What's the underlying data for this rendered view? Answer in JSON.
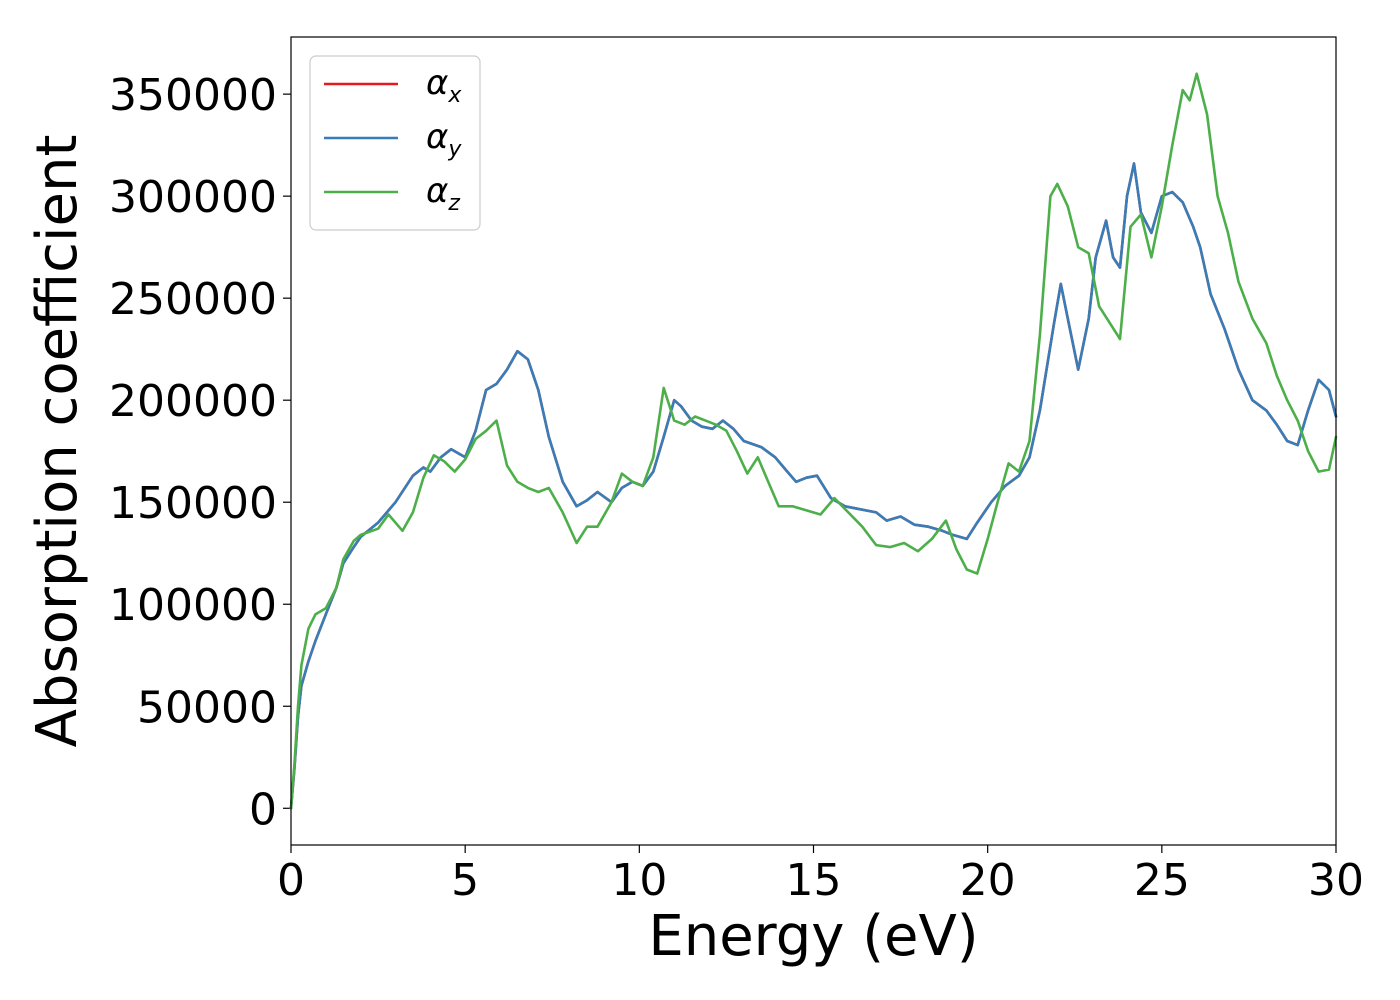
{
  "chart_data": {
    "type": "line",
    "xlabel": "Energy (eV)",
    "ylabel": "Absorption coefficient",
    "xlim": [
      0,
      30
    ],
    "ylim": [
      -18000,
      378000
    ],
    "xticks": [
      "0",
      "5",
      "10",
      "15",
      "20",
      "25",
      "30"
    ],
    "yticks": [
      "0",
      "50000",
      "100000",
      "150000",
      "200000",
      "250000",
      "300000",
      "350000"
    ],
    "grid": false,
    "legend_position": "top-left",
    "colors": {
      "alpha_x": "#e41a1c",
      "alpha_y": "#377eb8",
      "alpha_z": "#4daf4a"
    },
    "series": [
      {
        "name": "αx",
        "symbol": "α",
        "sub": "x",
        "x": [
          0,
          0.1,
          0.2,
          0.3,
          0.5,
          0.7,
          1.0,
          1.3,
          1.5,
          1.8,
          2.0,
          2.5,
          3.0,
          3.5,
          3.8,
          4.0,
          4.3,
          4.6,
          5.0,
          5.3,
          5.6,
          5.9,
          6.2,
          6.5,
          6.8,
          7.1,
          7.4,
          7.8,
          8.2,
          8.5,
          8.8,
          9.2,
          9.5,
          9.8,
          10.1,
          10.4,
          10.7,
          11.0,
          11.2,
          11.5,
          11.8,
          12.1,
          12.4,
          12.7,
          13.0,
          13.5,
          13.9,
          14.2,
          14.5,
          14.8,
          15.1,
          15.5,
          15.9,
          16.2,
          16.5,
          16.8,
          17.1,
          17.5,
          17.9,
          18.3,
          18.7,
          19.0,
          19.4,
          19.7,
          20.1,
          20.5,
          20.9,
          21.2,
          21.5,
          21.9,
          22.1,
          22.3,
          22.6,
          22.9,
          23.1,
          23.4,
          23.6,
          23.8,
          24.0,
          24.2,
          24.4,
          24.7,
          25.0,
          25.3,
          25.6,
          25.9,
          26.1,
          26.4,
          26.8,
          27.2,
          27.6,
          28.0,
          28.3,
          28.6,
          28.9,
          29.2,
          29.5,
          29.8,
          30.0
        ],
        "values": [
          0,
          20000,
          45000,
          60000,
          72000,
          82000,
          95000,
          108000,
          120000,
          128000,
          133000,
          140000,
          150000,
          163000,
          167000,
          165000,
          172000,
          176000,
          172000,
          185000,
          205000,
          208000,
          215000,
          224000,
          220000,
          205000,
          182000,
          160000,
          148000,
          151000,
          155000,
          150000,
          157000,
          160000,
          158000,
          165000,
          182000,
          200000,
          197000,
          190000,
          187000,
          186000,
          190000,
          186000,
          180000,
          177000,
          172000,
          166000,
          160000,
          162000,
          163000,
          152000,
          148000,
          147000,
          146000,
          145000,
          141000,
          143000,
          139000,
          138000,
          136000,
          134000,
          132000,
          140000,
          150000,
          158000,
          163000,
          172000,
          195000,
          237000,
          257000,
          240000,
          215000,
          240000,
          270000,
          288000,
          270000,
          265000,
          300000,
          316000,
          292000,
          282000,
          300000,
          302000,
          297000,
          285000,
          275000,
          252000,
          235000,
          215000,
          200000,
          195000,
          188000,
          180000,
          178000,
          195000,
          210000,
          205000,
          192000
        ],
        "note_hidden_under_alpha_y": true
      },
      {
        "name": "αy",
        "symbol": "α",
        "sub": "y",
        "x": [
          0,
          0.1,
          0.2,
          0.3,
          0.5,
          0.7,
          1.0,
          1.3,
          1.5,
          1.8,
          2.0,
          2.5,
          3.0,
          3.5,
          3.8,
          4.0,
          4.3,
          4.6,
          5.0,
          5.3,
          5.6,
          5.9,
          6.2,
          6.5,
          6.8,
          7.1,
          7.4,
          7.8,
          8.2,
          8.5,
          8.8,
          9.2,
          9.5,
          9.8,
          10.1,
          10.4,
          10.7,
          11.0,
          11.2,
          11.5,
          11.8,
          12.1,
          12.4,
          12.7,
          13.0,
          13.5,
          13.9,
          14.2,
          14.5,
          14.8,
          15.1,
          15.5,
          15.9,
          16.2,
          16.5,
          16.8,
          17.1,
          17.5,
          17.9,
          18.3,
          18.7,
          19.0,
          19.4,
          19.7,
          20.1,
          20.5,
          20.9,
          21.2,
          21.5,
          21.9,
          22.1,
          22.3,
          22.6,
          22.9,
          23.1,
          23.4,
          23.6,
          23.8,
          24.0,
          24.2,
          24.4,
          24.7,
          25.0,
          25.3,
          25.6,
          25.9,
          26.1,
          26.4,
          26.8,
          27.2,
          27.6,
          28.0,
          28.3,
          28.6,
          28.9,
          29.2,
          29.5,
          29.8,
          30.0
        ],
        "values": [
          0,
          20000,
          45000,
          60000,
          72000,
          82000,
          95000,
          108000,
          120000,
          128000,
          133000,
          140000,
          150000,
          163000,
          167000,
          165000,
          172000,
          176000,
          172000,
          185000,
          205000,
          208000,
          215000,
          224000,
          220000,
          205000,
          182000,
          160000,
          148000,
          151000,
          155000,
          150000,
          157000,
          160000,
          158000,
          165000,
          182000,
          200000,
          197000,
          190000,
          187000,
          186000,
          190000,
          186000,
          180000,
          177000,
          172000,
          166000,
          160000,
          162000,
          163000,
          152000,
          148000,
          147000,
          146000,
          145000,
          141000,
          143000,
          139000,
          138000,
          136000,
          134000,
          132000,
          140000,
          150000,
          158000,
          163000,
          172000,
          195000,
          237000,
          257000,
          240000,
          215000,
          240000,
          270000,
          288000,
          270000,
          265000,
          300000,
          316000,
          292000,
          282000,
          300000,
          302000,
          297000,
          285000,
          275000,
          252000,
          235000,
          215000,
          200000,
          195000,
          188000,
          180000,
          178000,
          195000,
          210000,
          205000,
          192000
        ]
      },
      {
        "name": "αz",
        "symbol": "α",
        "sub": "z",
        "x": [
          0,
          0.1,
          0.2,
          0.3,
          0.5,
          0.7,
          1.0,
          1.3,
          1.5,
          1.8,
          2.0,
          2.5,
          2.8,
          3.2,
          3.5,
          3.8,
          4.1,
          4.4,
          4.7,
          5.0,
          5.3,
          5.6,
          5.9,
          6.2,
          6.5,
          6.8,
          7.1,
          7.4,
          7.8,
          8.2,
          8.5,
          8.8,
          9.2,
          9.5,
          9.8,
          10.1,
          10.4,
          10.7,
          11.0,
          11.3,
          11.6,
          11.9,
          12.2,
          12.5,
          12.8,
          13.1,
          13.4,
          13.7,
          14.0,
          14.4,
          14.8,
          15.2,
          15.6,
          16.0,
          16.4,
          16.8,
          17.2,
          17.6,
          18.0,
          18.4,
          18.8,
          19.1,
          19.4,
          19.7,
          20.0,
          20.3,
          20.6,
          20.9,
          21.2,
          21.5,
          21.8,
          22.0,
          22.3,
          22.6,
          22.9,
          23.2,
          23.5,
          23.8,
          24.1,
          24.4,
          24.7,
          25.0,
          25.3,
          25.6,
          25.8,
          26.0,
          26.3,
          26.6,
          26.9,
          27.2,
          27.6,
          28.0,
          28.3,
          28.6,
          28.9,
          29.2,
          29.5,
          29.8,
          30.0
        ],
        "values": [
          0,
          22000,
          50000,
          70000,
          88000,
          95000,
          98000,
          108000,
          122000,
          131000,
          134000,
          137000,
          144000,
          136000,
          145000,
          162000,
          173000,
          170000,
          165000,
          171000,
          181000,
          185000,
          190000,
          168000,
          160000,
          157000,
          155000,
          157000,
          145000,
          130000,
          138000,
          138000,
          150000,
          164000,
          160000,
          158000,
          172000,
          206000,
          190000,
          188000,
          192000,
          190000,
          188000,
          185000,
          175000,
          164000,
          172000,
          160000,
          148000,
          148000,
          146000,
          144000,
          152000,
          145000,
          138000,
          129000,
          128000,
          130000,
          126000,
          132000,
          141000,
          127000,
          117000,
          115000,
          132000,
          151000,
          169000,
          165000,
          180000,
          232000,
          300000,
          306000,
          295000,
          275000,
          272000,
          246000,
          238000,
          230000,
          285000,
          291000,
          270000,
          295000,
          325000,
          352000,
          347000,
          360000,
          340000,
          300000,
          282000,
          258000,
          240000,
          228000,
          212000,
          200000,
          190000,
          175000,
          165000,
          166000,
          182000
        ]
      }
    ]
  }
}
